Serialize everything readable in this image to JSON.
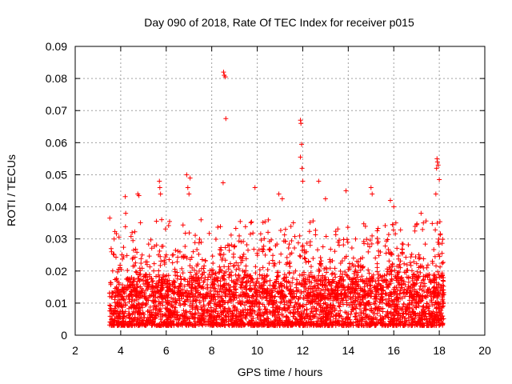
{
  "chart_data": {
    "type": "scatter",
    "title": "Day 090 of 2018, Rate Of TEC Index for receiver p015",
    "xlabel": "GPS time / hours",
    "ylabel": "ROTI / TECUs",
    "xlim": [
      2,
      20
    ],
    "ylim": [
      0,
      0.09
    ],
    "xticks": [
      2,
      4,
      6,
      8,
      10,
      12,
      14,
      16,
      18,
      20
    ],
    "xtick_labels": [
      "2",
      "4",
      "6",
      "8",
      "10",
      "12",
      "14",
      "16",
      "18",
      "20"
    ],
    "yticks": [
      0,
      0.01,
      0.02,
      0.03,
      0.04,
      0.05,
      0.06,
      0.07,
      0.08,
      0.09
    ],
    "ytick_labels": [
      "0",
      "0.01",
      "0.02",
      "0.03",
      "0.04",
      "0.05",
      "0.06",
      "0.07",
      "0.08",
      "0.09"
    ],
    "grid": true,
    "marker": "+",
    "series": [
      {
        "name": "ROTI",
        "color": "#ff0000",
        "x_range": [
          3.5,
          18.2
        ],
        "points": [
          [
            3.52,
            0.0365
          ],
          [
            3.58,
            0.027
          ],
          [
            3.6,
            0.026
          ],
          [
            4.2,
            0.0432
          ],
          [
            4.22,
            0.038
          ],
          [
            4.75,
            0.044
          ],
          [
            4.8,
            0.0435
          ],
          [
            5.7,
            0.048
          ],
          [
            5.72,
            0.046
          ],
          [
            5.75,
            0.044
          ],
          [
            5.8,
            0.036
          ],
          [
            6.9,
            0.05
          ],
          [
            6.95,
            0.046
          ],
          [
            7.05,
            0.049
          ],
          [
            7.0,
            0.044
          ],
          [
            8.5,
            0.0475
          ],
          [
            8.52,
            0.082
          ],
          [
            8.55,
            0.081
          ],
          [
            8.6,
            0.0805
          ],
          [
            8.62,
            0.0675
          ],
          [
            9.9,
            0.046
          ],
          [
            10.95,
            0.044
          ],
          [
            11.1,
            0.0425
          ],
          [
            11.9,
            0.067
          ],
          [
            11.92,
            0.066
          ],
          [
            11.95,
            0.0595
          ],
          [
            11.9,
            0.0555
          ],
          [
            11.97,
            0.052
          ],
          [
            12.0,
            0.048
          ],
          [
            12.7,
            0.048
          ],
          [
            13.0,
            0.0425
          ],
          [
            13.9,
            0.045
          ],
          [
            15.0,
            0.046
          ],
          [
            15.05,
            0.044
          ],
          [
            15.85,
            0.042
          ],
          [
            16.0,
            0.04
          ],
          [
            17.2,
            0.038
          ],
          [
            17.3,
            0.035
          ],
          [
            17.9,
            0.055
          ],
          [
            17.92,
            0.054
          ],
          [
            17.95,
            0.053
          ],
          [
            17.88,
            0.052
          ],
          [
            18.0,
            0.0485
          ],
          [
            17.85,
            0.044
          ]
        ]
      }
    ]
  }
}
